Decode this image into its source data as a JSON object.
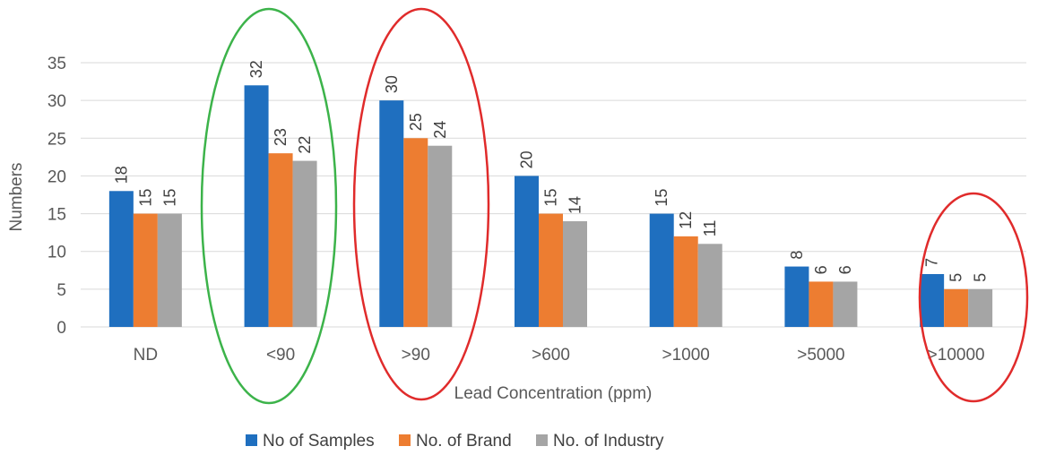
{
  "chart_data": {
    "type": "bar",
    "title": "",
    "xlabel": "Lead Concentration (ppm)",
    "ylabel": "Numbers",
    "categories": [
      "ND",
      "<90",
      ">90",
      ">600",
      ">1000",
      ">5000",
      ">10000"
    ],
    "series": [
      {
        "name": "No of Samples",
        "color": "#1f6fbf",
        "values": [
          18,
          32,
          30,
          20,
          15,
          8,
          7
        ]
      },
      {
        "name": "No. of Brand",
        "color": "#ed7d31",
        "values": [
          15,
          23,
          25,
          15,
          12,
          6,
          5
        ]
      },
      {
        "name": "No. of Industry",
        "color": "#a5a5a5",
        "values": [
          15,
          22,
          24,
          14,
          11,
          6,
          5
        ]
      }
    ],
    "ylim": [
      0,
      35
    ],
    "yticks": [
      0,
      5,
      10,
      15,
      20,
      25,
      30,
      35
    ],
    "grid": true,
    "legend_position": "bottom",
    "annotations": [
      {
        "shape": "ellipse",
        "color": "#3cb34a",
        "category": "<90"
      },
      {
        "shape": "ellipse",
        "color": "#e02b2b",
        "category": ">90"
      },
      {
        "shape": "ellipse",
        "color": "#e02b2b",
        "category": ">10000"
      }
    ]
  }
}
